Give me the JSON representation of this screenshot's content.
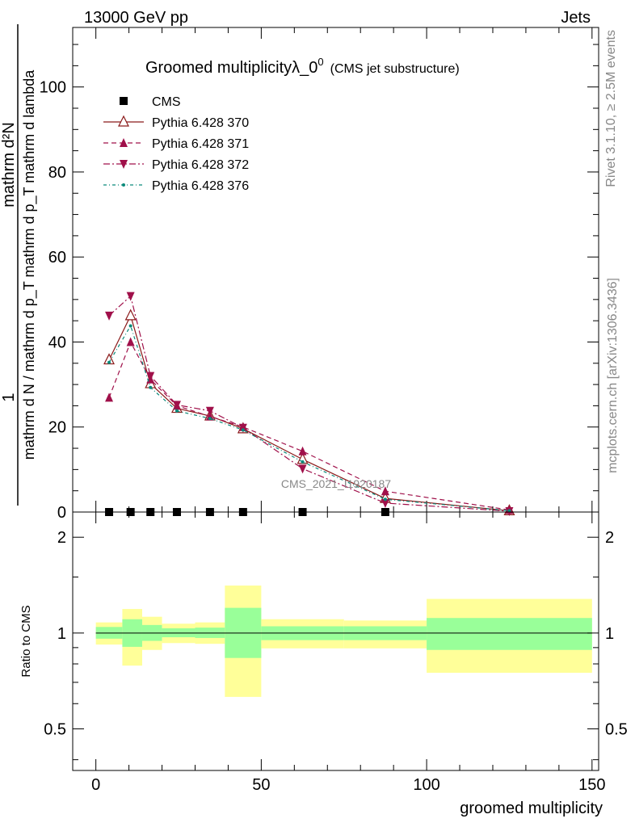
{
  "header": {
    "left": "13000 GeV pp",
    "right": "Jets"
  },
  "side_labels": {
    "rivet": "Rivet 3.1.10, ≥ 2.5M events",
    "mcplots": "mcplots.cern.ch [arXiv:1306.3436]"
  },
  "chart_data": [
    {
      "type": "line",
      "panel": "main",
      "title_main": "Groomed multiplicity",
      "title_symbol": "λ_0",
      "title_sup": "0",
      "title_sub": "(CMS jet substructure)",
      "ylabel_num": "1",
      "ylabel_den": "mathrm d N / mathrm d p_T mathrm d p_T mathrm d lambda",
      "ylabel_top": "mathrm d²N",
      "watermark": "CMS_2021_I1920187",
      "xlim": [
        -7,
        152
      ],
      "ylim": [
        0,
        114
      ],
      "y_ticks": [
        0,
        20,
        40,
        60,
        80,
        100
      ],
      "y_tick_labels": [
        "0",
        "20",
        "40",
        "60",
        "80",
        "100"
      ],
      "x_ticks": [
        0,
        50,
        100,
        150
      ],
      "legend_position": "top-left",
      "series": [
        {
          "name": "CMS",
          "color": "#000000",
          "marker": "square",
          "x": [
            4,
            10.5,
            16.5,
            24.5,
            34.5,
            44.5,
            62.5,
            87.5
          ],
          "y": [
            0,
            0,
            0,
            0,
            0,
            0,
            0,
            0
          ]
        },
        {
          "name": "Pythia 6.428 370",
          "color": "#8b1a1a",
          "marker": "triangle-up-open",
          "dash": "",
          "x": [
            4,
            10.5,
            16.5,
            24.5,
            34.5,
            44.5,
            62.5,
            87.5,
            125
          ],
          "y": [
            35.8,
            46.2,
            30.2,
            24.4,
            22.6,
            19.6,
            12.4,
            3.2,
            0.3
          ]
        },
        {
          "name": "Pythia 6.428 371",
          "color": "#a0104a",
          "marker": "triangle-up",
          "dash": "6,4",
          "x": [
            4,
            10.5,
            16.5,
            24.5,
            34.5,
            44.5,
            62.5,
            87.5,
            125
          ],
          "y": [
            26.9,
            40.0,
            31.2,
            25.0,
            22.5,
            20.0,
            14.3,
            4.9,
            0.5
          ]
        },
        {
          "name": "Pythia 6.428 372",
          "color": "#a0104a",
          "marker": "triangle-down",
          "dash": "8,3,2,3",
          "x": [
            4,
            10.5,
            16.5,
            24.5,
            34.5,
            44.5,
            62.5,
            87.5,
            125
          ],
          "y": [
            46.2,
            50.8,
            32.0,
            25.2,
            23.8,
            19.8,
            10.2,
            2.1,
            0.2
          ]
        },
        {
          "name": "Pythia 6.428 376",
          "color": "#0a8a7a",
          "marker": "dot",
          "dash": "4,3,1,3",
          "x": [
            4,
            10.5,
            16.5,
            24.5,
            34.5,
            44.5,
            62.5,
            87.5,
            125
          ],
          "y": [
            35.2,
            43.8,
            29.3,
            23.8,
            22.0,
            19.3,
            11.8,
            3.0,
            0.3
          ]
        }
      ]
    },
    {
      "type": "area",
      "panel": "ratio",
      "ylabel": "Ratio to CMS",
      "xlabel": "groomed multiplicity",
      "xlim": [
        -7,
        152
      ],
      "ylim": [
        0.37,
        2.4
      ],
      "y_ticks": [
        0.5,
        1,
        2
      ],
      "y_tick_labels": [
        "0.5",
        "1",
        "2"
      ],
      "x_ticks": [
        0,
        50,
        100,
        150
      ],
      "x_tick_labels": [
        "0",
        "50",
        "100",
        "150"
      ],
      "reference": 1,
      "bins": [
        {
          "lo": 0,
          "hi": 8,
          "stat_lo": 0.96,
          "stat_hi": 1.045,
          "tot_lo": 0.92,
          "tot_hi": 1.08
        },
        {
          "lo": 8,
          "hi": 14,
          "stat_lo": 0.905,
          "stat_hi": 1.105,
          "tot_lo": 0.79,
          "tot_hi": 1.19
        },
        {
          "lo": 14,
          "hi": 20,
          "stat_lo": 0.945,
          "stat_hi": 1.06,
          "tot_lo": 0.885,
          "tot_hi": 1.125
        },
        {
          "lo": 20,
          "hi": 30,
          "stat_lo": 0.97,
          "stat_hi": 1.035,
          "tot_lo": 0.93,
          "tot_hi": 1.07
        },
        {
          "lo": 30,
          "hi": 39,
          "stat_lo": 0.965,
          "stat_hi": 1.04,
          "tot_lo": 0.925,
          "tot_hi": 1.08
        },
        {
          "lo": 39,
          "hi": 50,
          "stat_lo": 0.835,
          "stat_hi": 1.2,
          "tot_lo": 0.63,
          "tot_hi": 1.41
        },
        {
          "lo": 50,
          "hi": 75,
          "stat_lo": 0.95,
          "stat_hi": 1.05,
          "tot_lo": 0.895,
          "tot_hi": 1.105
        },
        {
          "lo": 75,
          "hi": 100,
          "stat_lo": 0.95,
          "stat_hi": 1.05,
          "tot_lo": 0.895,
          "tot_hi": 1.095
        },
        {
          "lo": 100,
          "hi": 150,
          "stat_lo": 0.885,
          "stat_hi": 1.115,
          "tot_lo": 0.75,
          "tot_hi": 1.28
        }
      ],
      "colors": {
        "stat": "#99ff99",
        "total": "#ffff99"
      }
    }
  ]
}
